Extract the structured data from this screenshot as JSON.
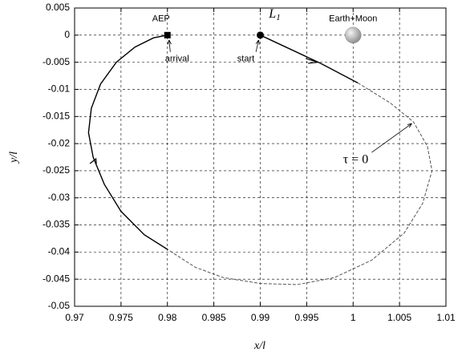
{
  "chart_data": {
    "type": "line",
    "xlabel": "x/l",
    "ylabel": "y/l",
    "xlim": [
      0.97,
      1.01
    ],
    "ylim": [
      -0.05,
      0.005
    ],
    "xticks": [
      0.97,
      0.975,
      0.98,
      0.985,
      0.99,
      0.995,
      1,
      1.005,
      1.01
    ],
    "yticks": [
      0.005,
      0,
      -0.005,
      -0.01,
      -0.015,
      -0.02,
      -0.025,
      -0.03,
      -0.035,
      -0.04,
      -0.045,
      -0.05
    ],
    "grid": true,
    "series": [
      {
        "color": "#000000",
        "style": "solid",
        "x": [
          0.99,
          0.9965,
          1.0005
        ],
        "values": [
          0,
          -0.0052,
          -0.0088
        ]
      },
      {
        "color": "#555555",
        "style": "dashed",
        "x": [
          1.0005,
          1.004,
          1.0065,
          1.008,
          1.0085,
          1.0075,
          1.0055,
          1.002,
          0.998,
          0.994,
          0.99,
          0.986,
          0.983,
          0.98
        ],
        "values": [
          -0.0088,
          -0.0125,
          -0.016,
          -0.0205,
          -0.025,
          -0.031,
          -0.0365,
          -0.0415,
          -0.0447,
          -0.046,
          -0.0458,
          -0.0447,
          -0.0428,
          -0.0395
        ]
      },
      {
        "color": "#000000",
        "style": "solid",
        "x": [
          0.98,
          0.9775,
          0.975,
          0.9732,
          0.972,
          0.9715,
          0.9718,
          0.9728,
          0.9745,
          0.9765,
          0.9785,
          0.98
        ],
        "values": [
          -0.0395,
          -0.0368,
          -0.0325,
          -0.0275,
          -0.0225,
          -0.018,
          -0.0135,
          -0.009,
          -0.005,
          -0.0022,
          -0.0005,
          0
        ]
      }
    ],
    "points": [
      {
        "label": "AEP",
        "note": "arrival",
        "x": 0.98,
        "y": 0,
        "marker": "square"
      },
      {
        "label": "L",
        "label_sub": "1",
        "note": "start",
        "x": 0.99,
        "y": 0,
        "marker": "circle"
      },
      {
        "label": "Earth+Moon",
        "x": 1,
        "y": 0,
        "marker": "sphere"
      }
    ],
    "annotations": [
      {
        "text": "τ = 0",
        "x": 1.0065,
        "y": -0.016
      }
    ]
  }
}
